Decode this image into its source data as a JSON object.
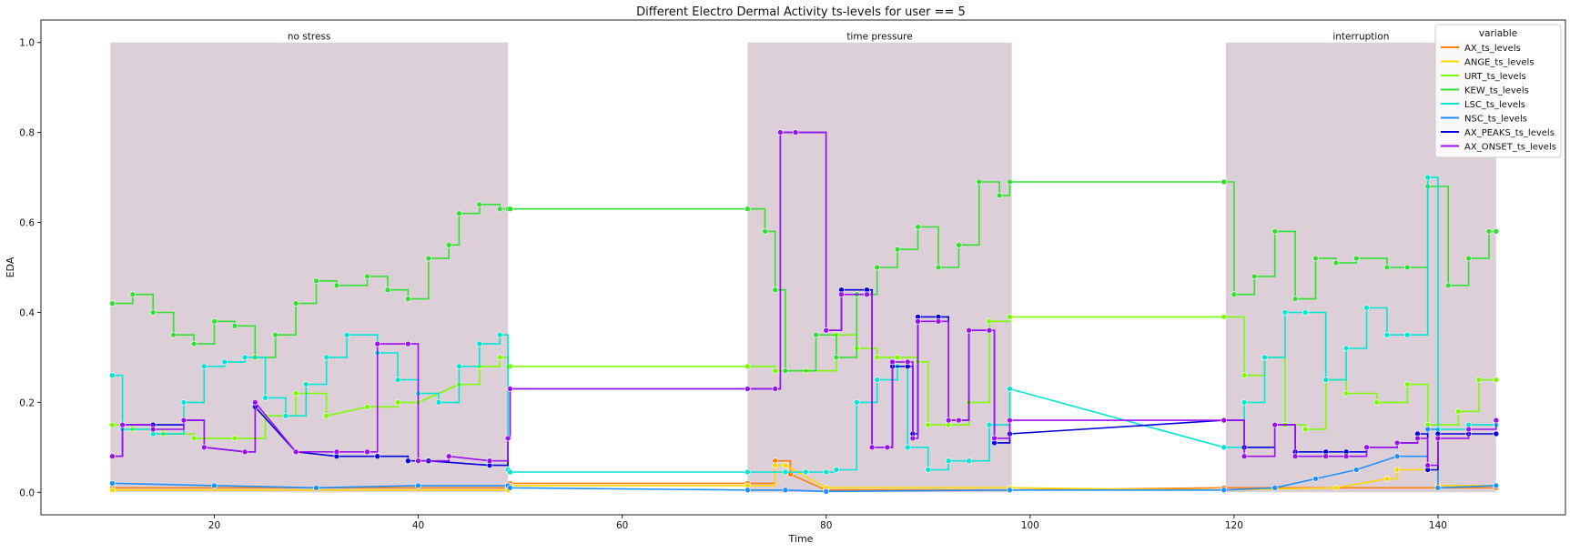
{
  "chart_data": {
    "type": "line",
    "title": "Different Electro Dermal Activity ts-levels for user == 5",
    "xlabel": "Time",
    "ylabel": "EDA",
    "xlim": [
      3,
      152.5
    ],
    "ylim": [
      -0.05,
      1.05
    ],
    "x_ticks": [
      20,
      40,
      60,
      80,
      100,
      120,
      140
    ],
    "y_ticks": [
      0.0,
      0.2,
      0.4,
      0.6,
      0.8,
      1.0
    ],
    "grid": false,
    "legend": {
      "title": "variable",
      "position": "top-right"
    },
    "phases": [
      {
        "label": "no stress",
        "x_start": 9.8,
        "x_end": 48.8,
        "color": "#dccfd8"
      },
      {
        "label": "time pressure",
        "x_start": 72.3,
        "x_end": 98.2,
        "color": "#dccfd8"
      },
      {
        "label": "interruption",
        "x_start": 119.2,
        "x_end": 145.7,
        "color": "#dccfd8"
      }
    ],
    "series": [
      {
        "name": "AX_ts_levels",
        "color": "#ff7f0e",
        "values": [
          [
            10,
            0.01
          ],
          [
            48.8,
            0.01
          ],
          [
            49,
            0.02
          ],
          [
            72.3,
            0.02
          ],
          [
            75,
            0.07
          ],
          [
            76.5,
            0.04
          ],
          [
            80,
            0.005
          ],
          [
            98,
            0.005
          ],
          [
            119,
            0.01
          ],
          [
            145.7,
            0.01
          ]
        ]
      },
      {
        "name": "ANGE_ts_levels",
        "color": "#ffd700",
        "values": [
          [
            10,
            0.005
          ],
          [
            48.8,
            0.005
          ],
          [
            49,
            0.015
          ],
          [
            72.3,
            0.015
          ],
          [
            75,
            0.06
          ],
          [
            76,
            0.06
          ],
          [
            80,
            0.01
          ],
          [
            98,
            0.01
          ],
          [
            119,
            0.005
          ],
          [
            130,
            0.01
          ],
          [
            135,
            0.03
          ],
          [
            136,
            0.05
          ],
          [
            139,
            0.05
          ],
          [
            140,
            0.015
          ],
          [
            145.7,
            0.015
          ]
        ]
      },
      {
        "name": "URT_ts_levels",
        "color": "#7cfc00",
        "values": [
          [
            10,
            0.15
          ],
          [
            12,
            0.14
          ],
          [
            15,
            0.13
          ],
          [
            18,
            0.12
          ],
          [
            22,
            0.12
          ],
          [
            25,
            0.17
          ],
          [
            28,
            0.22
          ],
          [
            31,
            0.17
          ],
          [
            35,
            0.19
          ],
          [
            38,
            0.2
          ],
          [
            40,
            0.2
          ],
          [
            44,
            0.24
          ],
          [
            46,
            0.28
          ],
          [
            48,
            0.3
          ],
          [
            48.8,
            0.28
          ],
          [
            49,
            0.28
          ],
          [
            72.3,
            0.28
          ],
          [
            75,
            0.27
          ],
          [
            76,
            0.27
          ],
          [
            78,
            0.27
          ],
          [
            81,
            0.35
          ],
          [
            83,
            0.32
          ],
          [
            85,
            0.3
          ],
          [
            87,
            0.3
          ],
          [
            89,
            0.29
          ],
          [
            90,
            0.15
          ],
          [
            92,
            0.15
          ],
          [
            94,
            0.2
          ],
          [
            96,
            0.38
          ],
          [
            98,
            0.39
          ],
          [
            119,
            0.39
          ],
          [
            121,
            0.26
          ],
          [
            123,
            0.3
          ],
          [
            125,
            0.15
          ],
          [
            127,
            0.14
          ],
          [
            129,
            0.25
          ],
          [
            131,
            0.22
          ],
          [
            134,
            0.2
          ],
          [
            137,
            0.24
          ],
          [
            139,
            0.15
          ],
          [
            142,
            0.18
          ],
          [
            144,
            0.25
          ],
          [
            145.7,
            0.25
          ]
        ]
      },
      {
        "name": "KEW_ts_levels",
        "color": "#32e032",
        "values": [
          [
            10,
            0.42
          ],
          [
            12,
            0.44
          ],
          [
            14,
            0.4
          ],
          [
            16,
            0.35
          ],
          [
            18,
            0.33
          ],
          [
            20,
            0.38
          ],
          [
            22,
            0.37
          ],
          [
            24,
            0.3
          ],
          [
            26,
            0.35
          ],
          [
            28,
            0.42
          ],
          [
            30,
            0.47
          ],
          [
            32,
            0.46
          ],
          [
            35,
            0.48
          ],
          [
            37,
            0.45
          ],
          [
            39,
            0.43
          ],
          [
            41,
            0.52
          ],
          [
            43,
            0.55
          ],
          [
            44,
            0.62
          ],
          [
            46,
            0.64
          ],
          [
            48,
            0.63
          ],
          [
            48.8,
            0.63
          ],
          [
            49,
            0.63
          ],
          [
            72.3,
            0.63
          ],
          [
            74,
            0.58
          ],
          [
            75,
            0.45
          ],
          [
            76,
            0.27
          ],
          [
            79,
            0.35
          ],
          [
            81,
            0.3
          ],
          [
            83,
            0.44
          ],
          [
            85,
            0.5
          ],
          [
            87,
            0.54
          ],
          [
            89,
            0.59
          ],
          [
            91,
            0.5
          ],
          [
            93,
            0.55
          ],
          [
            95,
            0.69
          ],
          [
            97,
            0.66
          ],
          [
            98,
            0.69
          ],
          [
            119,
            0.69
          ],
          [
            120,
            0.44
          ],
          [
            122,
            0.48
          ],
          [
            124,
            0.58
          ],
          [
            126,
            0.43
          ],
          [
            128,
            0.52
          ],
          [
            130,
            0.51
          ],
          [
            132,
            0.52
          ],
          [
            135,
            0.5
          ],
          [
            137,
            0.5
          ],
          [
            139,
            0.68
          ],
          [
            141,
            0.46
          ],
          [
            143,
            0.52
          ],
          [
            145,
            0.58
          ],
          [
            145.7,
            0.58
          ]
        ]
      },
      {
        "name": "LSC_ts_levels",
        "color": "#00e5d4",
        "values": [
          [
            10,
            0.26
          ],
          [
            11,
            0.14
          ],
          [
            14,
            0.13
          ],
          [
            17,
            0.2
          ],
          [
            19,
            0.28
          ],
          [
            21,
            0.29
          ],
          [
            23,
            0.3
          ],
          [
            25,
            0.21
          ],
          [
            27,
            0.17
          ],
          [
            29,
            0.24
          ],
          [
            31,
            0.3
          ],
          [
            33,
            0.35
          ],
          [
            36,
            0.31
          ],
          [
            38,
            0.25
          ],
          [
            40,
            0.22
          ],
          [
            42,
            0.2
          ],
          [
            44,
            0.28
          ],
          [
            46,
            0.33
          ],
          [
            48,
            0.35
          ],
          [
            48.8,
            0.05
          ],
          [
            49,
            0.045
          ],
          [
            72.3,
            0.045
          ],
          [
            76,
            0.045
          ],
          [
            78,
            0.045
          ],
          [
            80,
            0.045
          ],
          [
            81,
            0.05
          ],
          [
            83,
            0.2
          ],
          [
            85,
            0.25
          ],
          [
            87,
            0.28
          ],
          [
            88,
            0.1
          ],
          [
            90,
            0.05
          ],
          [
            92,
            0.07
          ],
          [
            94,
            0.07
          ],
          [
            96,
            0.15
          ],
          [
            98,
            0.23
          ],
          [
            119,
            0.1
          ],
          [
            121,
            0.2
          ],
          [
            123,
            0.3
          ],
          [
            125,
            0.4
          ],
          [
            127,
            0.4
          ],
          [
            129,
            0.25
          ],
          [
            131,
            0.32
          ],
          [
            133,
            0.41
          ],
          [
            135,
            0.35
          ],
          [
            137,
            0.35
          ],
          [
            139,
            0.7
          ],
          [
            140,
            0.14
          ],
          [
            143,
            0.15
          ],
          [
            145.7,
            0.15
          ]
        ]
      },
      {
        "name": "NSC_ts_levels",
        "color": "#1e90ff",
        "values": [
          [
            10,
            0.02
          ],
          [
            20,
            0.015
          ],
          [
            30,
            0.01
          ],
          [
            40,
            0.015
          ],
          [
            48.8,
            0.015
          ],
          [
            49,
            0.01
          ],
          [
            72.3,
            0.005
          ],
          [
            76,
            0.005
          ],
          [
            80,
            0.002
          ],
          [
            98,
            0.005
          ],
          [
            119,
            0.005
          ],
          [
            124,
            0.01
          ],
          [
            128,
            0.03
          ],
          [
            132,
            0.05
          ],
          [
            136,
            0.08
          ],
          [
            139,
            0.14
          ],
          [
            140,
            0.01
          ],
          [
            145.7,
            0.015
          ]
        ]
      },
      {
        "name": "AX_PEAKS_ts_levels",
        "color": "#0000e0",
        "values": [
          [
            10,
            0.08
          ],
          [
            11,
            0.15
          ],
          [
            14,
            0.15
          ],
          [
            17,
            0.16
          ],
          [
            19,
            0.1
          ],
          [
            23,
            0.09
          ],
          [
            24,
            0.19
          ],
          [
            28,
            0.09
          ],
          [
            32,
            0.08
          ],
          [
            36,
            0.08
          ],
          [
            39,
            0.07
          ],
          [
            41,
            0.07
          ],
          [
            47,
            0.06
          ],
          [
            48.8,
            0.12
          ],
          [
            49,
            0.23
          ],
          [
            72.3,
            0.23
          ],
          [
            75,
            0.23
          ],
          [
            75.5,
            0.8
          ],
          [
            77,
            0.8
          ],
          [
            80,
            0.36
          ],
          [
            81.5,
            0.45
          ],
          [
            84,
            0.45
          ],
          [
            84.5,
            0.1
          ],
          [
            86,
            0.1
          ],
          [
            86.5,
            0.28
          ],
          [
            88,
            0.28
          ],
          [
            88.5,
            0.13
          ],
          [
            89,
            0.39
          ],
          [
            91,
            0.39
          ],
          [
            92,
            0.16
          ],
          [
            93,
            0.16
          ],
          [
            94,
            0.36
          ],
          [
            96,
            0.36
          ],
          [
            96.5,
            0.11
          ],
          [
            98,
            0.13
          ],
          [
            119,
            0.16
          ],
          [
            121,
            0.1
          ],
          [
            124,
            0.15
          ],
          [
            126,
            0.09
          ],
          [
            129,
            0.09
          ],
          [
            131,
            0.09
          ],
          [
            133,
            0.1
          ],
          [
            136,
            0.11
          ],
          [
            138,
            0.13
          ],
          [
            139,
            0.05
          ],
          [
            140,
            0.13
          ],
          [
            143,
            0.13
          ],
          [
            145.7,
            0.13
          ]
        ]
      },
      {
        "name": "AX_ONSET_ts_levels",
        "color": "#9b10f0",
        "values": [
          [
            10,
            0.08
          ],
          [
            11,
            0.15
          ],
          [
            14,
            0.14
          ],
          [
            17,
            0.16
          ],
          [
            19,
            0.1
          ],
          [
            23,
            0.09
          ],
          [
            24,
            0.2
          ],
          [
            28,
            0.09
          ],
          [
            32,
            0.09
          ],
          [
            35,
            0.09
          ],
          [
            36,
            0.33
          ],
          [
            39,
            0.33
          ],
          [
            40,
            0.07
          ],
          [
            43,
            0.08
          ],
          [
            47,
            0.07
          ],
          [
            48.8,
            0.12
          ],
          [
            49,
            0.23
          ],
          [
            72.3,
            0.23
          ],
          [
            75,
            0.23
          ],
          [
            75.5,
            0.8
          ],
          [
            77,
            0.8
          ],
          [
            80,
            0.36
          ],
          [
            81.5,
            0.44
          ],
          [
            84,
            0.44
          ],
          [
            84.5,
            0.1
          ],
          [
            86,
            0.1
          ],
          [
            86.5,
            0.29
          ],
          [
            88,
            0.29
          ],
          [
            88.5,
            0.12
          ],
          [
            89,
            0.38
          ],
          [
            91,
            0.38
          ],
          [
            92,
            0.16
          ],
          [
            93,
            0.16
          ],
          [
            94,
            0.36
          ],
          [
            96,
            0.36
          ],
          [
            96.5,
            0.12
          ],
          [
            98,
            0.16
          ],
          [
            119,
            0.16
          ],
          [
            121,
            0.08
          ],
          [
            124,
            0.15
          ],
          [
            126,
            0.08
          ],
          [
            129,
            0.08
          ],
          [
            131,
            0.08
          ],
          [
            133,
            0.1
          ],
          [
            136,
            0.11
          ],
          [
            138,
            0.12
          ],
          [
            139,
            0.06
          ],
          [
            140,
            0.12
          ],
          [
            143,
            0.14
          ],
          [
            145.7,
            0.16
          ]
        ]
      }
    ]
  }
}
